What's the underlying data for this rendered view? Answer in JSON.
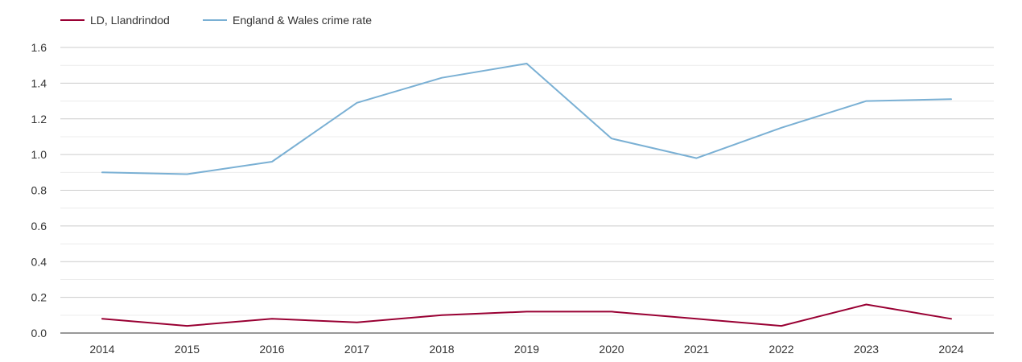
{
  "chart_data": {
    "type": "line",
    "title": "",
    "xlabel": "",
    "ylabel": "",
    "categories": [
      "2014",
      "2015",
      "2016",
      "2017",
      "2018",
      "2019",
      "2020",
      "2021",
      "2022",
      "2023",
      "2024"
    ],
    "series": [
      {
        "name": "LD, Llandrindod",
        "color": "#990033",
        "values": [
          0.08,
          0.04,
          0.08,
          0.06,
          0.1,
          0.12,
          0.12,
          0.08,
          0.04,
          0.16,
          0.08
        ]
      },
      {
        "name": "England & Wales crime rate",
        "color": "#7ab0d4",
        "values": [
          0.9,
          0.89,
          0.96,
          1.29,
          1.43,
          1.51,
          1.09,
          0.98,
          1.15,
          1.3,
          1.31
        ]
      }
    ],
    "ylim": [
      0,
      1.6
    ],
    "yticks": [
      "0.0",
      "0.2",
      "0.4",
      "0.6",
      "0.8",
      "1.0",
      "1.2",
      "1.4",
      "1.6"
    ],
    "grid": true,
    "legend_position": "top-left"
  }
}
